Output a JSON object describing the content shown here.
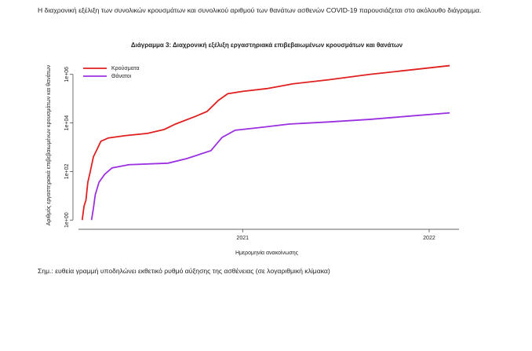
{
  "intro": "Η διαχρονική εξέλιξη των συνολικών κρουσμάτων και συνολικού αριθμού των θανάτων ασθενών COVID-19 παρουσιάζεται στο ακόλουθο διάγραμμα.",
  "chart_data": {
    "type": "line",
    "title": "Διάγραμμα 3: Διαχρονική εξέλιξη εργαστηριακά επιβεβαιωμένων κρουσμάτων και θανάτων",
    "x_label": "Ημερομηνία ανακοίνωσης",
    "y_label": "Αριθμός εργαστηριακά επιβεβαιωμένων κρουσμάτων και θανάτων",
    "log_scale_y": true,
    "xlim": [
      2020.12,
      2022.16
    ],
    "xticks": [
      2021,
      2022
    ],
    "ylim": [
      0.7,
      3000000
    ],
    "yticks": [
      {
        "value": 1,
        "label": "1e+00"
      },
      {
        "value": 100,
        "label": "1e+02"
      },
      {
        "value": 10000,
        "label": "1e+04"
      },
      {
        "value": 1000000,
        "label": "1e+06"
      }
    ],
    "legend": "top-left",
    "series": [
      {
        "name": "Κρούσματα",
        "color": "#e02020",
        "x": [
          2020.14,
          2020.15,
          2020.16,
          2020.17,
          2020.18,
          2020.2,
          2020.22,
          2020.24,
          2020.28,
          2020.37,
          2020.49,
          2020.58,
          2020.64,
          2020.75,
          2020.81,
          2020.87,
          2020.92,
          2021.0,
          2021.13,
          2021.27,
          2021.46,
          2021.68,
          2021.89,
          2022.11
        ],
        "values": [
          1,
          3.8,
          6.5,
          36,
          76,
          400,
          830,
          1750,
          2400,
          3000,
          3700,
          5400,
          9000,
          19000,
          30000,
          85000,
          160000,
          200000,
          260000,
          410000,
          600000,
          1000000,
          1500000,
          2300000
        ]
      },
      {
        "name": "Θάνατοι",
        "color": "#9b30e0",
        "x": [
          2020.19,
          2020.2,
          2020.21,
          2020.23,
          2020.26,
          2020.3,
          2020.39,
          2020.6,
          2020.7,
          2020.83,
          2020.89,
          2020.96,
          2021.08,
          2021.25,
          2021.46,
          2021.68,
          2021.89,
          2022.11
        ],
        "values": [
          1,
          3,
          11,
          36,
          76,
          140,
          190,
          220,
          340,
          720,
          2550,
          5000,
          6300,
          9000,
          11000,
          14000,
          19000,
          26000
        ]
      }
    ]
  },
  "note": "Σημ.: ευθεία γραμμή υποδηλώνει εκθετικό ρυθμό αύξησης της ασθένειας (σε λογαριθμική κλίμακα)"
}
